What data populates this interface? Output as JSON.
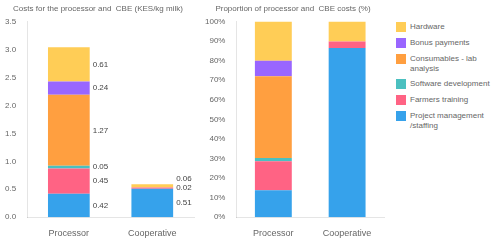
{
  "chart_data": [
    {
      "type": "bar",
      "title": "Costs for the processor and  CBE (KES/kg milk)",
      "categories": [
        "Processor",
        "Cooperative"
      ],
      "stacked": true,
      "data_labels": true,
      "grid": false,
      "ylim": [
        0,
        3.5
      ],
      "yticks": [
        {
          "value": 0,
          "label": "0.0"
        },
        0.5,
        {
          "value": 1,
          "label": "1.0"
        },
        1.5,
        {
          "value": 2,
          "label": "2.0"
        },
        2.5,
        {
          "value": 3,
          "label": "3.0"
        },
        3.5
      ],
      "series": [
        {
          "name": "Project management\n/staffing",
          "color": "#36a2eb",
          "values": [
            0.42,
            0.51
          ]
        },
        {
          "name": "Farmers training",
          "color": "#ff6384",
          "values": [
            0.45,
            0.02
          ]
        },
        {
          "name": "Software development",
          "color": "#4bc0c0",
          "values": [
            0.05,
            0.0
          ]
        },
        {
          "name": "Consumables - lab\nanalysis",
          "color": "#ff9f40",
          "values": [
            1.27,
            0.0
          ]
        },
        {
          "name": "Bonus payments",
          "color": "#9966ff",
          "values": [
            0.24,
            0.0
          ]
        },
        {
          "name": "Hardware",
          "color": "#ffcd56",
          "values": [
            0.61,
            0.06
          ]
        }
      ]
    },
    {
      "type": "bar",
      "title": "Proportion of processor and  CBE costs (%)",
      "categories": [
        "Processor",
        "Cooperative"
      ],
      "stacked": true,
      "grid": false,
      "legend": "right",
      "ylim": [
        0,
        100
      ],
      "yticks": [
        {
          "value": 0,
          "label": "0%"
        },
        {
          "value": 10,
          "label": "10%"
        },
        {
          "value": 20,
          "label": "20%"
        },
        {
          "value": 30,
          "label": "30%"
        },
        {
          "value": 40,
          "label": "40%"
        },
        {
          "value": 50,
          "label": "50%"
        },
        {
          "value": 60,
          "label": "60%"
        },
        {
          "value": 70,
          "label": "70%"
        },
        {
          "value": 80,
          "label": "80%"
        },
        {
          "value": 90,
          "label": "90%"
        },
        {
          "value": 100,
          "label": "100%"
        }
      ],
      "series": [
        {
          "name": "Project management\n/staffing",
          "color": "#36a2eb",
          "values": [
            13.8157894737,
            86.4406779661
          ]
        },
        {
          "name": "Farmers training",
          "color": "#ff6384",
          "values": [
            14.8026315789,
            3.3898305085
          ]
        },
        {
          "name": "Software development",
          "color": "#4bc0c0",
          "values": [
            1.6447368421,
            0.0
          ]
        },
        {
          "name": "Consumables - lab\nanalysis",
          "color": "#ff9f40",
          "values": [
            41.7763157895,
            0.0
          ]
        },
        {
          "name": "Bonus payments",
          "color": "#9966ff",
          "values": [
            7.8947368421,
            0.0
          ]
        },
        {
          "name": "Hardware",
          "color": "#ffcd56",
          "values": [
            20.0657894737,
            10.1694915254
          ]
        }
      ]
    }
  ]
}
